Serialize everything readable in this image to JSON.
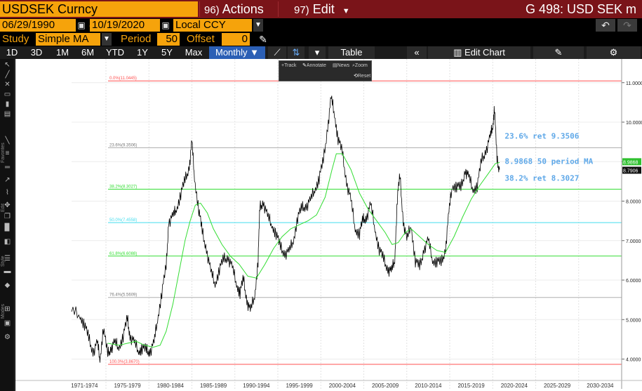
{
  "header": {
    "ticker": "USDSEK Curncy",
    "actions_num": "96)",
    "actions_label": "Actions",
    "edit_num": "97)",
    "edit_label": "Edit",
    "screen_title": "G 498: USD SEK m"
  },
  "dates": {
    "start": "06/29/1990",
    "end": "10/19/2020",
    "currency": "Local CCY"
  },
  "study": {
    "label": "Study",
    "value": "Simple MA",
    "period_label": "Period",
    "period": "50",
    "offset_label": "Offset",
    "offset": "0"
  },
  "ranges": [
    "1D",
    "3D",
    "1M",
    "6M",
    "YTD",
    "1Y",
    "5Y",
    "Max"
  ],
  "frequency": "Monthly",
  "toolbar": {
    "table": "Table",
    "edit_chart": "Edit Chart"
  },
  "annotation_bar": {
    "track": "Track",
    "annotate": "Annotate",
    "news": "News",
    "zoom": "Zoom",
    "reset": "Reset"
  },
  "left_toolbar_labels": [
    "Favorites",
    "Edit",
    "Style",
    "Modes"
  ],
  "colors": {
    "header_bg": "#7a1419",
    "field_bg": "#f6a30b",
    "price": "#000000",
    "ma": "#33dd33",
    "fib_red": "#ff5050",
    "fib_gray": "#b0b0b0",
    "fib_green": "#33dd33",
    "fib_cyan": "#44ddee",
    "annotation_text": "#5fa8e8"
  },
  "chart_data": {
    "type": "line",
    "xlabel": "",
    "ylabel": "",
    "xlim": [
      1971,
      2035
    ],
    "ylim": [
      3.6,
      11.6
    ],
    "x_tick_labels": [
      "1971-1974",
      "1975-1979",
      "1980-1984",
      "1985-1989",
      "1990-1994",
      "1995-1999",
      "2000-2004",
      "2005-2009",
      "2010-2014",
      "2015-2019",
      "2020-2024",
      "2025-2029",
      "2030-2034"
    ],
    "y_ticks": [
      "4.0000",
      "5.0000",
      "6.0000",
      "7.0000",
      "8.0000",
      "9.0000",
      "10.0000",
      "11.0000"
    ],
    "last_price_label": "8.7906",
    "last_ma_label": "8.9868",
    "fib_levels": [
      {
        "label": "0.0%(11.0445)",
        "value": 11.0445,
        "color": "red"
      },
      {
        "label": "23.6%(9.3506)",
        "value": 9.3506,
        "color": "gray"
      },
      {
        "label": "38.2%(8.3027)",
        "value": 8.3027,
        "color": "green"
      },
      {
        "label": "50.0%(7.4558)",
        "value": 7.4558,
        "color": "cyan"
      },
      {
        "label": "61.8%(6.6088)",
        "value": 6.6088,
        "color": "green"
      },
      {
        "label": "76.4%(5.5609)",
        "value": 5.5609,
        "color": "gray"
      },
      {
        "label": "100.0%(3.8670)",
        "value": 3.867,
        "color": "red"
      }
    ],
    "annotations": [
      {
        "text": "23.6% ret 9.3506",
        "x": 2021.4,
        "y": 9.58
      },
      {
        "text": "8.9868 50 period MA",
        "x": 2021.4,
        "y": 8.94
      },
      {
        "text": "38.2% ret 8.3027",
        "x": 2021.4,
        "y": 8.52
      }
    ],
    "series": [
      {
        "name": "USDSEK",
        "style": "price",
        "x": [
          1971.0,
          1972.0,
          1972.5,
          1973.0,
          1973.5,
          1974.0,
          1974.3,
          1974.7,
          1975.2,
          1975.6,
          1976.0,
          1976.5,
          1977.0,
          1977.5,
          1977.8,
          1978.3,
          1978.8,
          1979.2,
          1979.7,
          1980.1,
          1980.6,
          1981.0,
          1981.5,
          1982.0,
          1982.3,
          1982.8,
          1983.2,
          1983.7,
          1984.2,
          1984.7,
          1985.0,
          1985.3,
          1985.8,
          1986.2,
          1986.7,
          1987.2,
          1987.7,
          1988.2,
          1988.7,
          1989.2,
          1989.7,
          1990.2,
          1990.6,
          1991.0,
          1991.4,
          1991.8,
          1992.3,
          1992.7,
          1992.9,
          1993.3,
          1993.8,
          1994.3,
          1994.8,
          1995.3,
          1995.8,
          1996.3,
          1996.8,
          1997.3,
          1997.8,
          1998.3,
          1998.8,
          1999.3,
          1999.8,
          2000.3,
          2000.8,
          2001.2,
          2001.6,
          2002.0,
          2002.5,
          2003.0,
          2003.5,
          2004.0,
          2004.5,
          2004.9,
          2005.3,
          2005.8,
          2006.3,
          2006.8,
          2007.3,
          2007.8,
          2008.2,
          2008.6,
          2008.9,
          2009.2,
          2009.6,
          2010.0,
          2010.5,
          2011.0,
          2011.5,
          2012.0,
          2012.5,
          2013.0,
          2013.5,
          2014.0,
          2014.5,
          2014.9,
          2015.3,
          2015.8,
          2016.3,
          2016.8,
          2017.2,
          2017.7,
          2018.2,
          2018.7,
          2019.2,
          2019.7,
          2020.0,
          2020.2,
          2020.5,
          2020.8
        ],
        "y": [
          5.2,
          5.1,
          4.9,
          4.5,
          4.2,
          4.4,
          4.0,
          4.8,
          4.1,
          4.3,
          4.4,
          4.3,
          4.6,
          5.0,
          4.6,
          4.4,
          4.2,
          4.3,
          4.2,
          4.2,
          4.4,
          5.0,
          5.7,
          6.3,
          7.5,
          7.6,
          7.8,
          8.2,
          8.5,
          8.9,
          9.5,
          8.6,
          7.8,
          7.2,
          6.8,
          6.2,
          5.9,
          6.3,
          6.5,
          6.6,
          6.3,
          5.9,
          5.7,
          6.0,
          5.5,
          5.2,
          5.6,
          6.5,
          7.8,
          8.0,
          7.6,
          7.4,
          7.2,
          6.8,
          6.7,
          6.7,
          7.0,
          7.6,
          7.8,
          7.9,
          8.0,
          8.3,
          8.6,
          9.0,
          9.9,
          10.6,
          10.2,
          9.6,
          9.2,
          8.5,
          8.0,
          7.3,
          7.2,
          7.5,
          7.6,
          7.9,
          7.3,
          6.8,
          6.5,
          6.3,
          6.2,
          6.5,
          8.1,
          8.6,
          7.5,
          7.0,
          7.4,
          6.5,
          6.3,
          6.8,
          7.0,
          6.5,
          6.5,
          6.4,
          6.8,
          7.7,
          8.4,
          8.4,
          8.3,
          8.8,
          8.6,
          8.3,
          8.4,
          9.0,
          9.3,
          9.6,
          9.9,
          10.4,
          9.0,
          8.8
        ]
      },
      {
        "name": "50 period MA",
        "style": "ma",
        "x": [
          1975.2,
          1976.5,
          1977.5,
          1978.5,
          1979.5,
          1980.5,
          1981.3,
          1982.0,
          1982.8,
          1983.5,
          1984.2,
          1984.8,
          1985.4,
          1986.0,
          1986.8,
          1987.5,
          1988.5,
          1989.5,
          1990.5,
          1991.5,
          1992.5,
          1993.5,
          1994.5,
          1995.5,
          1996.5,
          1997.5,
          1998.5,
          1999.5,
          2000.5,
          2001.3,
          2001.8,
          2002.5,
          2003.5,
          2004.5,
          2005.5,
          2006.5,
          2007.5,
          2008.3,
          2009.0,
          2009.8,
          2010.5,
          2011.5,
          2012.5,
          2013.5,
          2014.5,
          2015.5,
          2016.5,
          2017.5,
          2018.5,
          2019.5,
          2020.3,
          2020.8
        ],
        "y": [
          4.4,
          4.35,
          4.4,
          4.45,
          4.35,
          4.3,
          4.35,
          4.7,
          5.4,
          6.2,
          7.0,
          7.5,
          7.9,
          7.95,
          7.7,
          7.3,
          6.9,
          6.6,
          6.4,
          6.1,
          6.05,
          6.4,
          6.8,
          7.1,
          7.3,
          7.4,
          7.5,
          7.65,
          8.1,
          8.8,
          9.2,
          9.2,
          8.8,
          8.2,
          7.8,
          7.5,
          7.2,
          6.9,
          6.95,
          7.2,
          7.3,
          7.1,
          6.9,
          6.75,
          6.7,
          7.1,
          7.6,
          8.05,
          8.4,
          8.7,
          8.95,
          8.98
        ]
      }
    ]
  }
}
